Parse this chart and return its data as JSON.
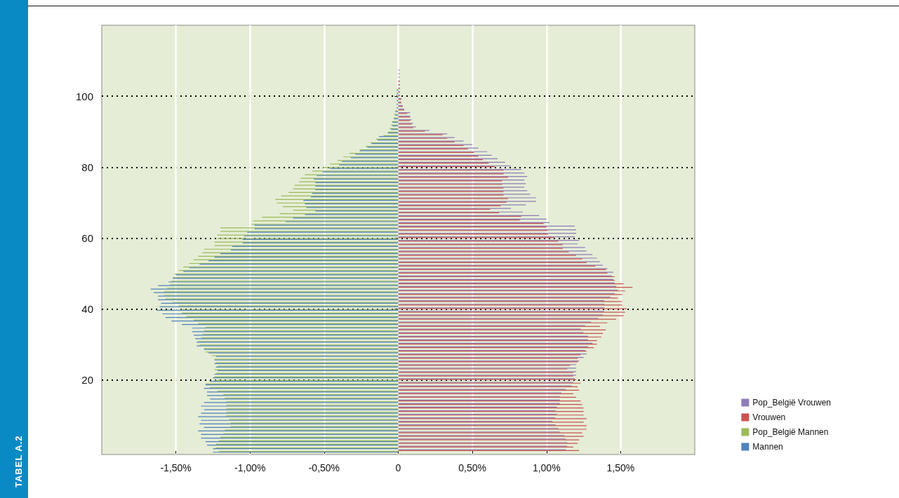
{
  "chart_data": {
    "type": "bar",
    "orientation": "horizontal",
    "annotations": [
      "TABEL A.2"
    ],
    "x": [
      107,
      106,
      105,
      104,
      103,
      102,
      101,
      100,
      99,
      98,
      97,
      96,
      95,
      94,
      93,
      92,
      91,
      90,
      89,
      88,
      87,
      86,
      85,
      84,
      83,
      82,
      81,
      80,
      79,
      78,
      77,
      76,
      75,
      74,
      73,
      72,
      71,
      70,
      69,
      68,
      67,
      66,
      65,
      64,
      63,
      62,
      61,
      60,
      59,
      58,
      57,
      56,
      55,
      54,
      53,
      52,
      51,
      50,
      49,
      48,
      47,
      46,
      45,
      44,
      43,
      42,
      41,
      40,
      39,
      38,
      37,
      36,
      35,
      34,
      33,
      32,
      31,
      30,
      29,
      28,
      27,
      26,
      25,
      24,
      23,
      22,
      21,
      20,
      19,
      18,
      17,
      16,
      15,
      14,
      13,
      12,
      11,
      10,
      9,
      8,
      7,
      6,
      5,
      4,
      3,
      2,
      1,
      0
    ],
    "xlim": [
      -2,
      2
    ],
    "xticks": [
      {
        "value": -1.5,
        "label": "-1,50%"
      },
      {
        "value": -1,
        "label": "-1,00%"
      },
      {
        "value": -0.5,
        "label": "-0,50%"
      },
      0,
      {
        "value": 0.5,
        "label": "0,50%"
      },
      {
        "value": 1,
        "label": "1,00%"
      },
      {
        "value": 1.5,
        "label": "1,50%"
      }
    ],
    "ylim": [
      -1,
      120
    ],
    "yticks": [
      20,
      40,
      60,
      80,
      100
    ],
    "grid": true,
    "legend": "right",
    "series": [
      {
        "name": "Pop_België Vrouwen",
        "color": "#8e7cb8",
        "values": [
          0.01,
          0.01,
          0.01,
          0.01,
          0.01,
          0.01,
          0.01,
          0.01,
          0.02,
          0.02,
          0.03,
          0.04,
          0.08,
          0.08,
          0.09,
          0.1,
          0.12,
          0.21,
          0.33,
          0.38,
          0.44,
          0.5,
          0.54,
          0.6,
          0.63,
          0.67,
          0.72,
          0.76,
          0.83,
          0.85,
          0.87,
          0.85,
          0.86,
          0.85,
          0.87,
          0.89,
          0.93,
          0.93,
          0.86,
          0.76,
          0.84,
          0.95,
          1.0,
          1.02,
          1.19,
          1.2,
          1.2,
          1.19,
          1.22,
          1.21,
          1.26,
          1.27,
          1.31,
          1.34,
          1.36,
          1.38,
          1.41,
          1.45,
          1.44,
          1.45,
          1.46,
          1.47,
          1.48,
          1.46,
          1.43,
          1.39,
          1.39,
          1.39,
          1.39,
          1.38,
          1.35,
          1.3,
          1.26,
          1.23,
          1.25,
          1.28,
          1.28,
          1.31,
          1.28,
          1.26,
          1.27,
          1.25,
          1.22,
          1.2,
          1.2,
          1.2,
          1.2,
          1.19,
          1.18,
          1.17,
          1.13,
          1.1,
          1.09,
          1.09,
          1.09,
          1.07,
          1.06,
          1.07,
          1.06,
          1.04,
          1.06,
          1.08,
          1.09,
          1.12,
          1.13,
          1.14,
          1.14,
          1.13
        ]
      },
      {
        "name": "Vrouwen",
        "color": "#c9534f",
        "values": [
          0,
          0,
          0,
          0.01,
          0.01,
          0.01,
          0.01,
          0.01,
          0.02,
          0.02,
          0.03,
          0.04,
          0.06,
          0.08,
          0.08,
          0.09,
          0.1,
          0.18,
          0.3,
          0.33,
          0.38,
          0.44,
          0.47,
          0.51,
          0.54,
          0.57,
          0.61,
          0.65,
          0.71,
          0.71,
          0.74,
          0.7,
          0.7,
          0.71,
          0.71,
          0.71,
          0.74,
          0.73,
          0.69,
          0.62,
          0.68,
          0.83,
          0.82,
          0.98,
          1.0,
          1.01,
          1.01,
          1.05,
          1.08,
          1.11,
          1.11,
          1.15,
          1.2,
          1.24,
          1.27,
          1.33,
          1.4,
          1.41,
          1.46,
          1.46,
          1.52,
          1.58,
          1.53,
          1.51,
          1.48,
          1.51,
          1.51,
          1.54,
          1.53,
          1.52,
          1.47,
          1.41,
          1.36,
          1.4,
          1.38,
          1.37,
          1.34,
          1.34,
          1.32,
          1.27,
          1.23,
          1.21,
          1.21,
          1.16,
          1.14,
          1.18,
          1.18,
          1.2,
          1.23,
          1.21,
          1.22,
          1.18,
          1.2,
          1.23,
          1.24,
          1.25,
          1.25,
          1.25,
          1.27,
          1.25,
          1.27,
          1.27,
          1.24,
          1.25,
          1.22,
          1.21,
          1.18,
          1.22
        ]
      },
      {
        "name": "Pop_België Mannen",
        "color": "#9bbb59",
        "values": [
          0,
          0,
          0,
          0,
          0,
          -0.01,
          -0.01,
          -0.01,
          -0.01,
          -0.01,
          -0.01,
          -0.02,
          -0.03,
          -0.03,
          -0.04,
          -0.05,
          -0.06,
          -0.07,
          -0.1,
          -0.15,
          -0.19,
          -0.22,
          -0.26,
          -0.33,
          -0.37,
          -0.41,
          -0.46,
          -0.51,
          -0.58,
          -0.63,
          -0.66,
          -0.67,
          -0.7,
          -0.71,
          -0.74,
          -0.79,
          -0.83,
          -0.82,
          -0.78,
          -0.71,
          -0.8,
          -0.92,
          -0.98,
          -0.99,
          -1.2,
          -1.2,
          -1.22,
          -1.22,
          -1.24,
          -1.24,
          -1.31,
          -1.32,
          -1.35,
          -1.38,
          -1.41,
          -1.45,
          -1.48,
          -1.51,
          -1.52,
          -1.53,
          -1.54,
          -1.56,
          -1.58,
          -1.58,
          -1.57,
          -1.52,
          -1.48,
          -1.47,
          -1.46,
          -1.43,
          -1.38,
          -1.35,
          -1.3,
          -1.31,
          -1.32,
          -1.33,
          -1.35,
          -1.34,
          -1.31,
          -1.3,
          -1.26,
          -1.24,
          -1.23,
          -1.22,
          -1.24,
          -1.23,
          -1.24,
          -1.24,
          -1.3,
          -1.27,
          -1.22,
          -1.18,
          -1.17,
          -1.16,
          -1.16,
          -1.16,
          -1.16,
          -1.16,
          -1.14,
          -1.13,
          -1.13,
          -1.17,
          -1.18,
          -1.2,
          -1.21,
          -1.23,
          -1.23,
          -1.21
        ]
      },
      {
        "name": "Mannen",
        "color": "#4f81bd",
        "values": [
          0,
          0,
          0,
          0,
          0,
          -0.01,
          -0.01,
          -0.01,
          -0.01,
          -0.01,
          -0.01,
          -0.02,
          -0.02,
          -0.03,
          -0.04,
          -0.04,
          -0.05,
          -0.07,
          -0.13,
          -0.14,
          -0.18,
          -0.21,
          -0.26,
          -0.29,
          -0.32,
          -0.38,
          -0.4,
          -0.46,
          -0.51,
          -0.55,
          -0.57,
          -0.56,
          -0.56,
          -0.56,
          -0.58,
          -0.59,
          -0.64,
          -0.63,
          -0.62,
          -0.56,
          -0.63,
          -0.71,
          -0.76,
          -0.97,
          -0.97,
          -1.02,
          -1.04,
          -1.05,
          -1.05,
          -1.12,
          -1.13,
          -1.2,
          -1.24,
          -1.28,
          -1.34,
          -1.41,
          -1.45,
          -1.5,
          -1.52,
          -1.55,
          -1.62,
          -1.67,
          -1.65,
          -1.62,
          -1.62,
          -1.6,
          -1.61,
          -1.63,
          -1.59,
          -1.57,
          -1.53,
          -1.46,
          -1.39,
          -1.39,
          -1.38,
          -1.37,
          -1.36,
          -1.36,
          -1.31,
          -1.28,
          -1.23,
          -1.24,
          -1.24,
          -1.23,
          -1.22,
          -1.24,
          -1.25,
          -1.27,
          -1.3,
          -1.31,
          -1.29,
          -1.29,
          -1.27,
          -1.31,
          -1.33,
          -1.31,
          -1.33,
          -1.35,
          -1.33,
          -1.34,
          -1.31,
          -1.35,
          -1.33,
          -1.33,
          -1.3,
          -1.29,
          -1.25,
          -1.25
        ]
      }
    ]
  }
}
